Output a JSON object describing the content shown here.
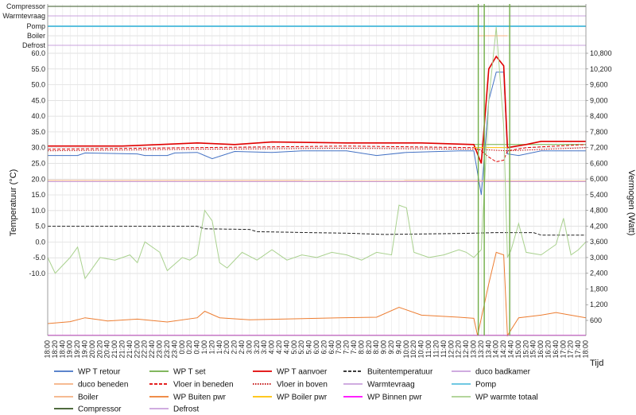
{
  "chart_data": {
    "type": "line",
    "xlabel": "Tijd",
    "ylabel_left": "Temperatuur (°C)",
    "ylabel_right": "Vermogen (Watt)",
    "left_axis": {
      "ticks": [
        "-10.0",
        "-5.0",
        "0.0",
        "5.0",
        "10.0",
        "15.0",
        "20.0",
        "25.0",
        "30.0",
        "35.0",
        "40.0",
        "45.0",
        "50.0",
        "55.0",
        "60.0"
      ]
    },
    "right_axis": {
      "ticks": [
        "600",
        "1,200",
        "1,800",
        "2,400",
        "3,000",
        "3,600",
        "4,200",
        "4,800",
        "5,400",
        "6,000",
        "6,600",
        "7,200",
        "7,800",
        "8,400",
        "9,000",
        "9,600",
        "10,200",
        "10,800"
      ]
    },
    "status_rows": [
      "Compressor",
      "Warmtevraag",
      "Pomp",
      "Boiler",
      "Defrost"
    ],
    "x_ticks": [
      "18:00",
      "18:20",
      "18:40",
      "19:00",
      "19:20",
      "19:40",
      "20:00",
      "20:20",
      "20:40",
      "21:00",
      "21:20",
      "21:40",
      "22:00",
      "22:20",
      "22:40",
      "23:00",
      "23:20",
      "23:40",
      "0:00",
      "0:20",
      "0:40",
      "1:00",
      "1:20",
      "1:40",
      "2:00",
      "2:20",
      "2:40",
      "3:00",
      "3:20",
      "3:40",
      "4:00",
      "4:20",
      "4:40",
      "5:00",
      "5:20",
      "5:40",
      "6:00",
      "6:20",
      "6:40",
      "7:00",
      "7:20",
      "7:40",
      "8:00",
      "8:20",
      "8:40",
      "9:00",
      "9:20",
      "9:40",
      "10:00",
      "10:20",
      "10:40",
      "11:00",
      "11:20",
      "11:40",
      "12:00",
      "12:20",
      "12:40",
      "13:00",
      "13:20",
      "13:40",
      "14:00",
      "14:20",
      "14:40",
      "15:00",
      "15:20",
      "15:40",
      "16:00",
      "16:20",
      "16:40",
      "17:00",
      "17:20",
      "17:40",
      "18:00"
    ],
    "series": [
      {
        "name": "WP T retour",
        "color": "#4472c4",
        "axis": "left",
        "style": "solid",
        "points": [
          [
            0,
            27.5
          ],
          [
            4,
            27.5
          ],
          [
            5,
            28.3
          ],
          [
            12,
            28.0
          ],
          [
            13,
            27.5
          ],
          [
            16,
            27.5
          ],
          [
            17,
            28.3
          ],
          [
            20,
            28.5
          ],
          [
            22,
            26.5
          ],
          [
            25,
            28.8
          ],
          [
            30,
            28.5
          ],
          [
            34,
            29
          ],
          [
            40,
            29
          ],
          [
            44,
            27.5
          ],
          [
            48,
            28.5
          ],
          [
            55,
            29
          ],
          [
            57,
            29
          ],
          [
            58,
            15
          ],
          [
            59,
            45
          ],
          [
            60,
            54
          ],
          [
            61,
            54
          ],
          [
            61.5,
            28
          ],
          [
            63,
            27.5
          ],
          [
            66,
            29
          ],
          [
            72,
            29
          ]
        ]
      },
      {
        "name": "WP T set",
        "color": "#70ad47",
        "axis": "left",
        "style": "solid",
        "points": [
          [
            57,
            31
          ],
          [
            72,
            31
          ]
        ]
      },
      {
        "name": "WP T aanvoer",
        "color": "#e00000",
        "axis": "left",
        "style": "solid",
        "points": [
          [
            0,
            30.5
          ],
          [
            10,
            30.5
          ],
          [
            15,
            31
          ],
          [
            20,
            31.5
          ],
          [
            25,
            31
          ],
          [
            30,
            31.8
          ],
          [
            40,
            31.5
          ],
          [
            50,
            31.5
          ],
          [
            57,
            31
          ],
          [
            58,
            25
          ],
          [
            59,
            55
          ],
          [
            60,
            59
          ],
          [
            61,
            56
          ],
          [
            61.5,
            30
          ],
          [
            64,
            31
          ],
          [
            66,
            32
          ],
          [
            72,
            32
          ]
        ]
      },
      {
        "name": "Buitentemperatuur",
        "color": "#222222",
        "axis": "left",
        "style": "dash",
        "points": [
          [
            0,
            5
          ],
          [
            20,
            5
          ],
          [
            21,
            4.2
          ],
          [
            27,
            4
          ],
          [
            28,
            3.3
          ],
          [
            35,
            3
          ],
          [
            40,
            2.8
          ],
          [
            45,
            2.4
          ],
          [
            55,
            2.7
          ],
          [
            60,
            3
          ],
          [
            65,
            3
          ],
          [
            66,
            2.2
          ],
          [
            72,
            2.2
          ]
        ]
      },
      {
        "name": "duco badkamer",
        "color": "#c9a0dc",
        "axis": "left",
        "style": "solid",
        "points": [
          [
            0,
            19.2
          ],
          [
            72,
            19.2
          ]
        ]
      },
      {
        "name": "duco beneden",
        "color": "#f4b183",
        "axis": "left",
        "style": "solid",
        "points": [
          [
            0,
            19.6
          ],
          [
            72,
            19.5
          ]
        ]
      },
      {
        "name": "Vloer in beneden",
        "color": "#e00000",
        "axis": "left",
        "style": "dash",
        "points": [
          [
            0,
            29.5
          ],
          [
            20,
            30
          ],
          [
            40,
            30.5
          ],
          [
            57,
            30
          ],
          [
            58,
            29
          ],
          [
            59,
            27
          ],
          [
            60,
            25.5
          ],
          [
            61,
            26
          ],
          [
            61.5,
            29
          ],
          [
            64,
            30
          ],
          [
            72,
            31
          ]
        ]
      },
      {
        "name": "Vloer in boven",
        "color": "#c00000",
        "axis": "left",
        "style": "dot",
        "points": [
          [
            0,
            29
          ],
          [
            20,
            29.5
          ],
          [
            40,
            29.8
          ],
          [
            57,
            29.5
          ],
          [
            61.5,
            29
          ],
          [
            72,
            30
          ]
        ]
      },
      {
        "name": "Boiler",
        "color": "#f4b183",
        "axis": "status",
        "row": "Boiler",
        "points": [
          [
            57.5,
            1
          ],
          [
            61.5,
            1
          ]
        ]
      },
      {
        "name": "WP Buiten pwr",
        "color": "#ed7d31",
        "axis": "right",
        "style": "solid",
        "points": [
          [
            0,
            480
          ],
          [
            3,
            550
          ],
          [
            5,
            700
          ],
          [
            8,
            580
          ],
          [
            12,
            650
          ],
          [
            16,
            540
          ],
          [
            20,
            700
          ],
          [
            21,
            950
          ],
          [
            23,
            700
          ],
          [
            27,
            620
          ],
          [
            33,
            660
          ],
          [
            39,
            700
          ],
          [
            44,
            720
          ],
          [
            47,
            1100
          ],
          [
            50,
            800
          ],
          [
            55,
            720
          ],
          [
            57,
            680
          ],
          [
            57.5,
            0
          ],
          [
            59,
            2000
          ],
          [
            60,
            3200
          ],
          [
            61,
            3100
          ],
          [
            61.5,
            0
          ],
          [
            63,
            700
          ],
          [
            66,
            800
          ],
          [
            68,
            900
          ],
          [
            72,
            700
          ]
        ]
      },
      {
        "name": "WP Boiler pwr",
        "color": "#ffc000",
        "axis": "right",
        "style": "solid",
        "points": [
          [
            57,
            7200
          ],
          [
            61.5,
            7200
          ]
        ]
      },
      {
        "name": "WP Binnen pwr",
        "color": "#ff00ff",
        "axis": "right",
        "style": "solid",
        "points": [
          [
            0,
            30
          ],
          [
            72,
            30
          ]
        ]
      },
      {
        "name": "WP warmte totaal",
        "color": "#a9d18e",
        "axis": "right",
        "style": "solid",
        "points": [
          [
            0,
            3000
          ],
          [
            1,
            2400
          ],
          [
            3,
            3000
          ],
          [
            4,
            3400
          ],
          [
            5,
            2200
          ],
          [
            7,
            3000
          ],
          [
            9,
            2900
          ],
          [
            11,
            3100
          ],
          [
            12,
            2800
          ],
          [
            13,
            3600
          ],
          [
            15,
            3200
          ],
          [
            16,
            2500
          ],
          [
            18,
            3000
          ],
          [
            19,
            2900
          ],
          [
            20,
            3100
          ],
          [
            21,
            4800
          ],
          [
            22,
            4400
          ],
          [
            23,
            2800
          ],
          [
            24,
            2600
          ],
          [
            26,
            3200
          ],
          [
            28,
            2900
          ],
          [
            30,
            3300
          ],
          [
            32,
            2900
          ],
          [
            34,
            3100
          ],
          [
            36,
            3000
          ],
          [
            38,
            3200
          ],
          [
            40,
            3100
          ],
          [
            42,
            2900
          ],
          [
            44,
            3200
          ],
          [
            46,
            3100
          ],
          [
            47,
            5000
          ],
          [
            48,
            4900
          ],
          [
            49,
            3200
          ],
          [
            51,
            3000
          ],
          [
            53,
            3100
          ],
          [
            55,
            3300
          ],
          [
            56,
            3200
          ],
          [
            57,
            3000
          ],
          [
            58,
            3300
          ],
          [
            59,
            9000
          ],
          [
            60,
            11800
          ],
          [
            61,
            8000
          ],
          [
            61.5,
            3000
          ],
          [
            62,
            3300
          ],
          [
            63,
            4300
          ],
          [
            64,
            3200
          ],
          [
            66,
            3100
          ],
          [
            68,
            3500
          ],
          [
            69,
            4500
          ],
          [
            70,
            3100
          ],
          [
            71,
            3300
          ],
          [
            72,
            3600
          ]
        ]
      },
      {
        "name": "Compressor",
        "color": "#375623",
        "axis": "status",
        "row": "Compressor",
        "points": [
          [
            0,
            0
          ],
          [
            72,
            0
          ]
        ]
      },
      {
        "name": "Defrost",
        "color": "#c9a0dc",
        "axis": "status",
        "row": "Defrost",
        "points": [
          [
            0,
            0
          ],
          [
            72,
            0
          ]
        ]
      },
      {
        "name": "Warmtevraag",
        "color": "#c9a0dc",
        "axis": "status",
        "row": "Warmtevraag",
        "points": [
          [
            0,
            1
          ],
          [
            72,
            1
          ]
        ]
      },
      {
        "name": "Pomp",
        "color": "#5bc0de",
        "axis": "status",
        "row": "Pomp",
        "points": [
          [
            0,
            1
          ],
          [
            72,
            1
          ]
        ]
      }
    ],
    "legend": [
      {
        "name": "WP T retour",
        "color": "#4472c4",
        "style": "solid"
      },
      {
        "name": "WP T set",
        "color": "#70ad47",
        "style": "solid"
      },
      {
        "name": "WP T aanvoer",
        "color": "#e00000",
        "style": "solid"
      },
      {
        "name": "Buitentemperatuur",
        "color": "#222222",
        "style": "dash"
      },
      {
        "name": "duco badkamer",
        "color": "#c9a0dc",
        "style": "solid"
      },
      {
        "name": "duco beneden",
        "color": "#f4b183",
        "style": "solid"
      },
      {
        "name": "Vloer in beneden",
        "color": "#e00000",
        "style": "dash"
      },
      {
        "name": "Vloer in boven",
        "color": "#c00000",
        "style": "dot"
      },
      {
        "name": "Warmtevraag",
        "color": "#c9a0dc",
        "style": "solid"
      },
      {
        "name": "Pomp",
        "color": "#5bc0de",
        "style": "solid"
      },
      {
        "name": "Boiler",
        "color": "#f4b183",
        "style": "solid"
      },
      {
        "name": "WP Buiten pwr",
        "color": "#ed7d31",
        "style": "solid"
      },
      {
        "name": "WP Boiler pwr",
        "color": "#ffc000",
        "style": "solid"
      },
      {
        "name": "WP Binnen pwr",
        "color": "#ff00ff",
        "style": "solid"
      },
      {
        "name": "WP warmte totaal",
        "color": "#a9d18e",
        "style": "solid"
      },
      {
        "name": "Compressor",
        "color": "#375623",
        "style": "solid"
      },
      {
        "name": "Defrost",
        "color": "#c9a0dc",
        "style": "solid"
      }
    ]
  }
}
